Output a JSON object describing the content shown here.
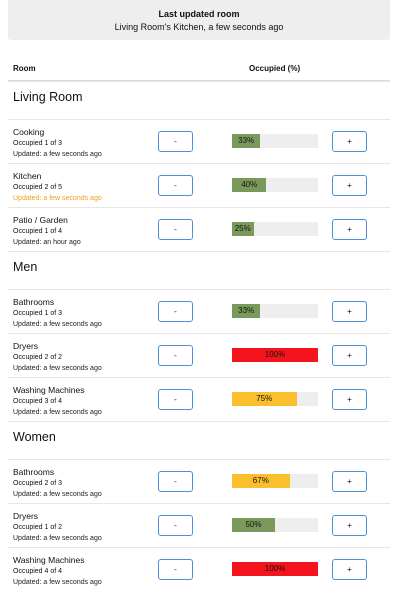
{
  "header": {
    "title": "Last updated room",
    "subtitle": "Living Room's Kitchen, a few seconds ago"
  },
  "table": {
    "columns": [
      "Room",
      "Occupied (%)"
    ],
    "decrement": "-",
    "increment": "+",
    "sections": [
      {
        "name": "Living Room",
        "rows": [
          {
            "name": "Cooking",
            "occupied": "Occupied 1 of 3",
            "updated": "Updated: a few seconds ago",
            "updated_color": "#222",
            "percent": 33,
            "percent_label": "33%",
            "bar_color": "#7a9a5c"
          },
          {
            "name": "Kitchen",
            "occupied": "Occupied 2 of 5",
            "updated": "Updated: a few seconds ago",
            "updated_color": "#f0a020",
            "percent": 40,
            "percent_label": "40%",
            "bar_color": "#7a9a5c"
          },
          {
            "name": "Patio / Garden",
            "occupied": "Occupied 1 of 4",
            "updated": "Updated: an hour ago",
            "updated_color": "#222",
            "percent": 25,
            "percent_label": "25%",
            "bar_color": "#7a9a5c"
          }
        ]
      },
      {
        "name": "Men",
        "rows": [
          {
            "name": "Bathrooms",
            "occupied": "Occupied 1 of 3",
            "updated": "Updated: a few seconds ago",
            "updated_color": "#222",
            "percent": 33,
            "percent_label": "33%",
            "bar_color": "#7a9a5c"
          },
          {
            "name": "Dryers",
            "occupied": "Occupied 2 of 2",
            "updated": "Updated: a few seconds ago",
            "updated_color": "#222",
            "percent": 100,
            "percent_label": "100%",
            "bar_color": "#f5141e"
          },
          {
            "name": "Washing Machines",
            "occupied": "Occupied 3 of 4",
            "updated": "Updated: a few seconds ago",
            "updated_color": "#222",
            "percent": 75,
            "percent_label": "75%",
            "bar_color": "#fbbf2d"
          }
        ]
      },
      {
        "name": "Women",
        "rows": [
          {
            "name": "Bathrooms",
            "occupied": "Occupied 2 of 3",
            "updated": "Updated: a few seconds ago",
            "updated_color": "#222",
            "percent": 67,
            "percent_label": "67%",
            "bar_color": "#fbbf2d"
          },
          {
            "name": "Dryers",
            "occupied": "Occupied 1 of 2",
            "updated": "Updated: a few seconds ago",
            "updated_color": "#222",
            "percent": 50,
            "percent_label": "50%",
            "bar_color": "#7a9a5c"
          },
          {
            "name": "Washing Machines",
            "occupied": "Occupied 4 of 4",
            "updated": "Updated: a few seconds ago",
            "updated_color": "#222",
            "percent": 100,
            "percent_label": "100%",
            "bar_color": "#f5141e"
          }
        ]
      }
    ]
  }
}
